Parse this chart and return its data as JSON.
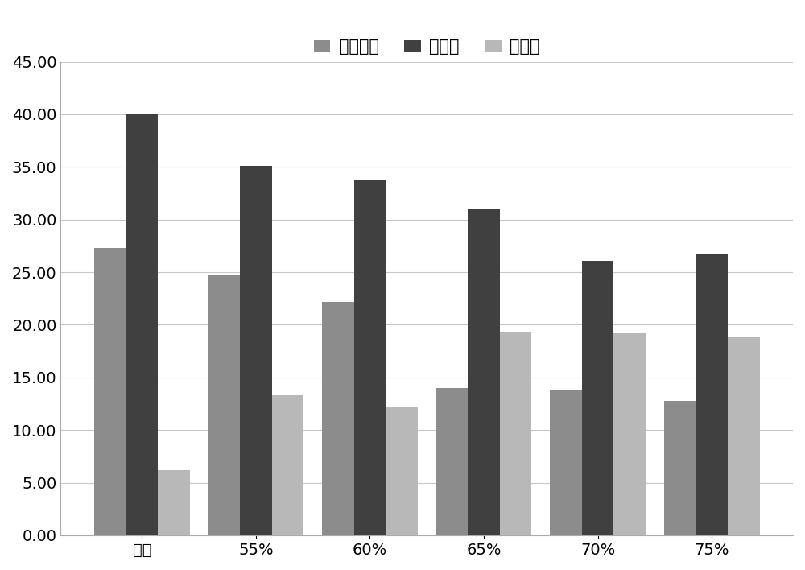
{
  "categories": [
    "对照",
    "55%",
    "60%",
    "65%",
    "70%",
    "75%"
  ],
  "series": [
    {
      "name": "半纤维素",
      "values": [
        27.3,
        24.7,
        22.2,
        14.0,
        13.8,
        12.8
      ],
      "color": "#8c8c8c"
    },
    {
      "name": "纤维素",
      "values": [
        40.0,
        35.1,
        33.7,
        31.0,
        26.1,
        26.7
      ],
      "color": "#404040"
    },
    {
      "name": "木质素",
      "values": [
        6.2,
        13.3,
        12.2,
        19.3,
        19.2,
        18.8
      ],
      "color": "#b8b8b8"
    }
  ],
  "ylim": [
    0,
    45
  ],
  "yticks": [
    0.0,
    5.0,
    10.0,
    15.0,
    20.0,
    25.0,
    30.0,
    35.0,
    40.0,
    45.0
  ],
  "bar_width": 0.28,
  "background_color": "#ffffff",
  "grid_color": "#c8c8c8",
  "legend_fontsize": 15,
  "tick_fontsize": 14,
  "figure_width": 10.0,
  "figure_height": 7.08
}
